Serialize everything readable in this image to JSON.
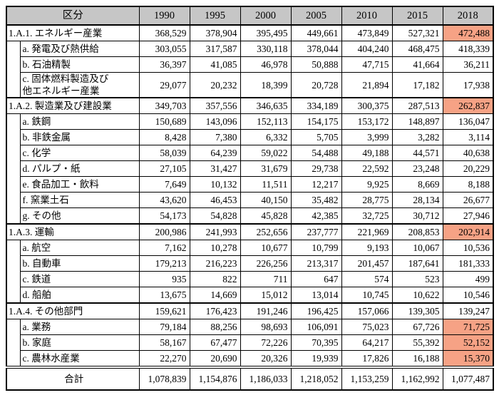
{
  "colors": {
    "header_bg": "#C6C6C6",
    "highlight": "#F6A285",
    "border": "#000000"
  },
  "table": {
    "header": {
      "category": "区分",
      "years": [
        "1990",
        "1995",
        "2000",
        "2005",
        "2010",
        "2015",
        "2018"
      ]
    },
    "sections": [
      {
        "parent": {
          "label": "1.A.1. エネルギー産業",
          "values": [
            "368,529",
            "378,904",
            "395,495",
            "449,661",
            "473,849",
            "527,321",
            "472,488"
          ],
          "highlight_2018": true
        },
        "children": [
          {
            "label": "a. 発電及び熱供給",
            "values": [
              "303,055",
              "317,587",
              "330,118",
              "378,044",
              "404,240",
              "468,475",
              "418,339"
            ],
            "highlight_2018": false
          },
          {
            "label": "b. 石油精製",
            "values": [
              "36,397",
              "41,085",
              "46,978",
              "50,888",
              "47,715",
              "41,664",
              "36,211"
            ],
            "highlight_2018": false
          },
          {
            "label": "c. 固体燃料製造及び\n他エネルギー産業",
            "values": [
              "29,077",
              "20,232",
              "18,399",
              "20,728",
              "21,894",
              "17,182",
              "17,938"
            ],
            "highlight_2018": false
          }
        ]
      },
      {
        "parent": {
          "label": "1.A.2. 製造業及び建設業",
          "values": [
            "349,703",
            "357,556",
            "346,635",
            "334,189",
            "300,375",
            "287,513",
            "262,837"
          ],
          "highlight_2018": true
        },
        "children": [
          {
            "label": "a. 鉄鋼",
            "values": [
              "150,689",
              "143,096",
              "152,113",
              "154,175",
              "153,172",
              "148,897",
              "136,047"
            ],
            "highlight_2018": false
          },
          {
            "label": "b. 非鉄金属",
            "values": [
              "8,428",
              "7,380",
              "6,332",
              "5,705",
              "3,999",
              "3,282",
              "3,114"
            ],
            "highlight_2018": false
          },
          {
            "label": "c. 化学",
            "values": [
              "58,039",
              "64,239",
              "59,022",
              "54,488",
              "49,188",
              "44,571",
              "40,638"
            ],
            "highlight_2018": false
          },
          {
            "label": "d. パルプ・紙",
            "values": [
              "27,105",
              "31,427",
              "31,679",
              "29,738",
              "22,592",
              "23,248",
              "20,229"
            ],
            "highlight_2018": false
          },
          {
            "label": "e. 食品加工・飲料",
            "values": [
              "7,649",
              "10,132",
              "11,511",
              "12,217",
              "9,925",
              "8,669",
              "8,188"
            ],
            "highlight_2018": false
          },
          {
            "label": "f. 窯業土石",
            "values": [
              "43,620",
              "46,453",
              "40,150",
              "35,482",
              "28,775",
              "28,134",
              "26,677"
            ],
            "highlight_2018": false
          },
          {
            "label": "g. その他",
            "values": [
              "54,173",
              "54,828",
              "45,828",
              "42,385",
              "32,725",
              "30,712",
              "27,946"
            ],
            "highlight_2018": false
          }
        ]
      },
      {
        "parent": {
          "label": "1.A.3. 運輸",
          "values": [
            "200,986",
            "241,993",
            "252,656",
            "237,777",
            "221,969",
            "208,853",
            "202,914"
          ],
          "highlight_2018": true
        },
        "children": [
          {
            "label": "a. 航空",
            "values": [
              "7,162",
              "10,278",
              "10,677",
              "10,799",
              "9,193",
              "10,067",
              "10,536"
            ],
            "highlight_2018": false
          },
          {
            "label": "b. 自動車",
            "values": [
              "179,213",
              "216,223",
              "226,256",
              "213,317",
              "201,457",
              "187,641",
              "181,333"
            ],
            "highlight_2018": false
          },
          {
            "label": "c. 鉄道",
            "values": [
              "935",
              "822",
              "711",
              "647",
              "574",
              "523",
              "499"
            ],
            "highlight_2018": false
          },
          {
            "label": "d. 船舶",
            "values": [
              "13,675",
              "14,669",
              "15,012",
              "13,014",
              "10,745",
              "10,622",
              "10,546"
            ],
            "highlight_2018": false
          }
        ]
      },
      {
        "parent": {
          "label": "1.A.4. その他部門",
          "values": [
            "159,621",
            "176,423",
            "191,246",
            "196,425",
            "157,066",
            "139,305",
            "139,247"
          ],
          "highlight_2018": false
        },
        "children": [
          {
            "label": "a. 業務",
            "values": [
              "79,184",
              "88,256",
              "98,693",
              "106,091",
              "75,023",
              "67,726",
              "71,725"
            ],
            "highlight_2018": true
          },
          {
            "label": "b. 家庭",
            "values": [
              "58,167",
              "67,477",
              "72,226",
              "70,395",
              "64,217",
              "55,392",
              "52,152"
            ],
            "highlight_2018": true
          },
          {
            "label": "c. 農林水産業",
            "values": [
              "22,270",
              "20,690",
              "20,326",
              "19,939",
              "17,826",
              "16,188",
              "15,370"
            ],
            "highlight_2018": true
          }
        ]
      }
    ],
    "total": {
      "label": "合計",
      "values": [
        "1,078,839",
        "1,154,876",
        "1,186,033",
        "1,218,052",
        "1,153,259",
        "1,162,992",
        "1,077,487"
      ],
      "highlight_2018": false
    }
  }
}
